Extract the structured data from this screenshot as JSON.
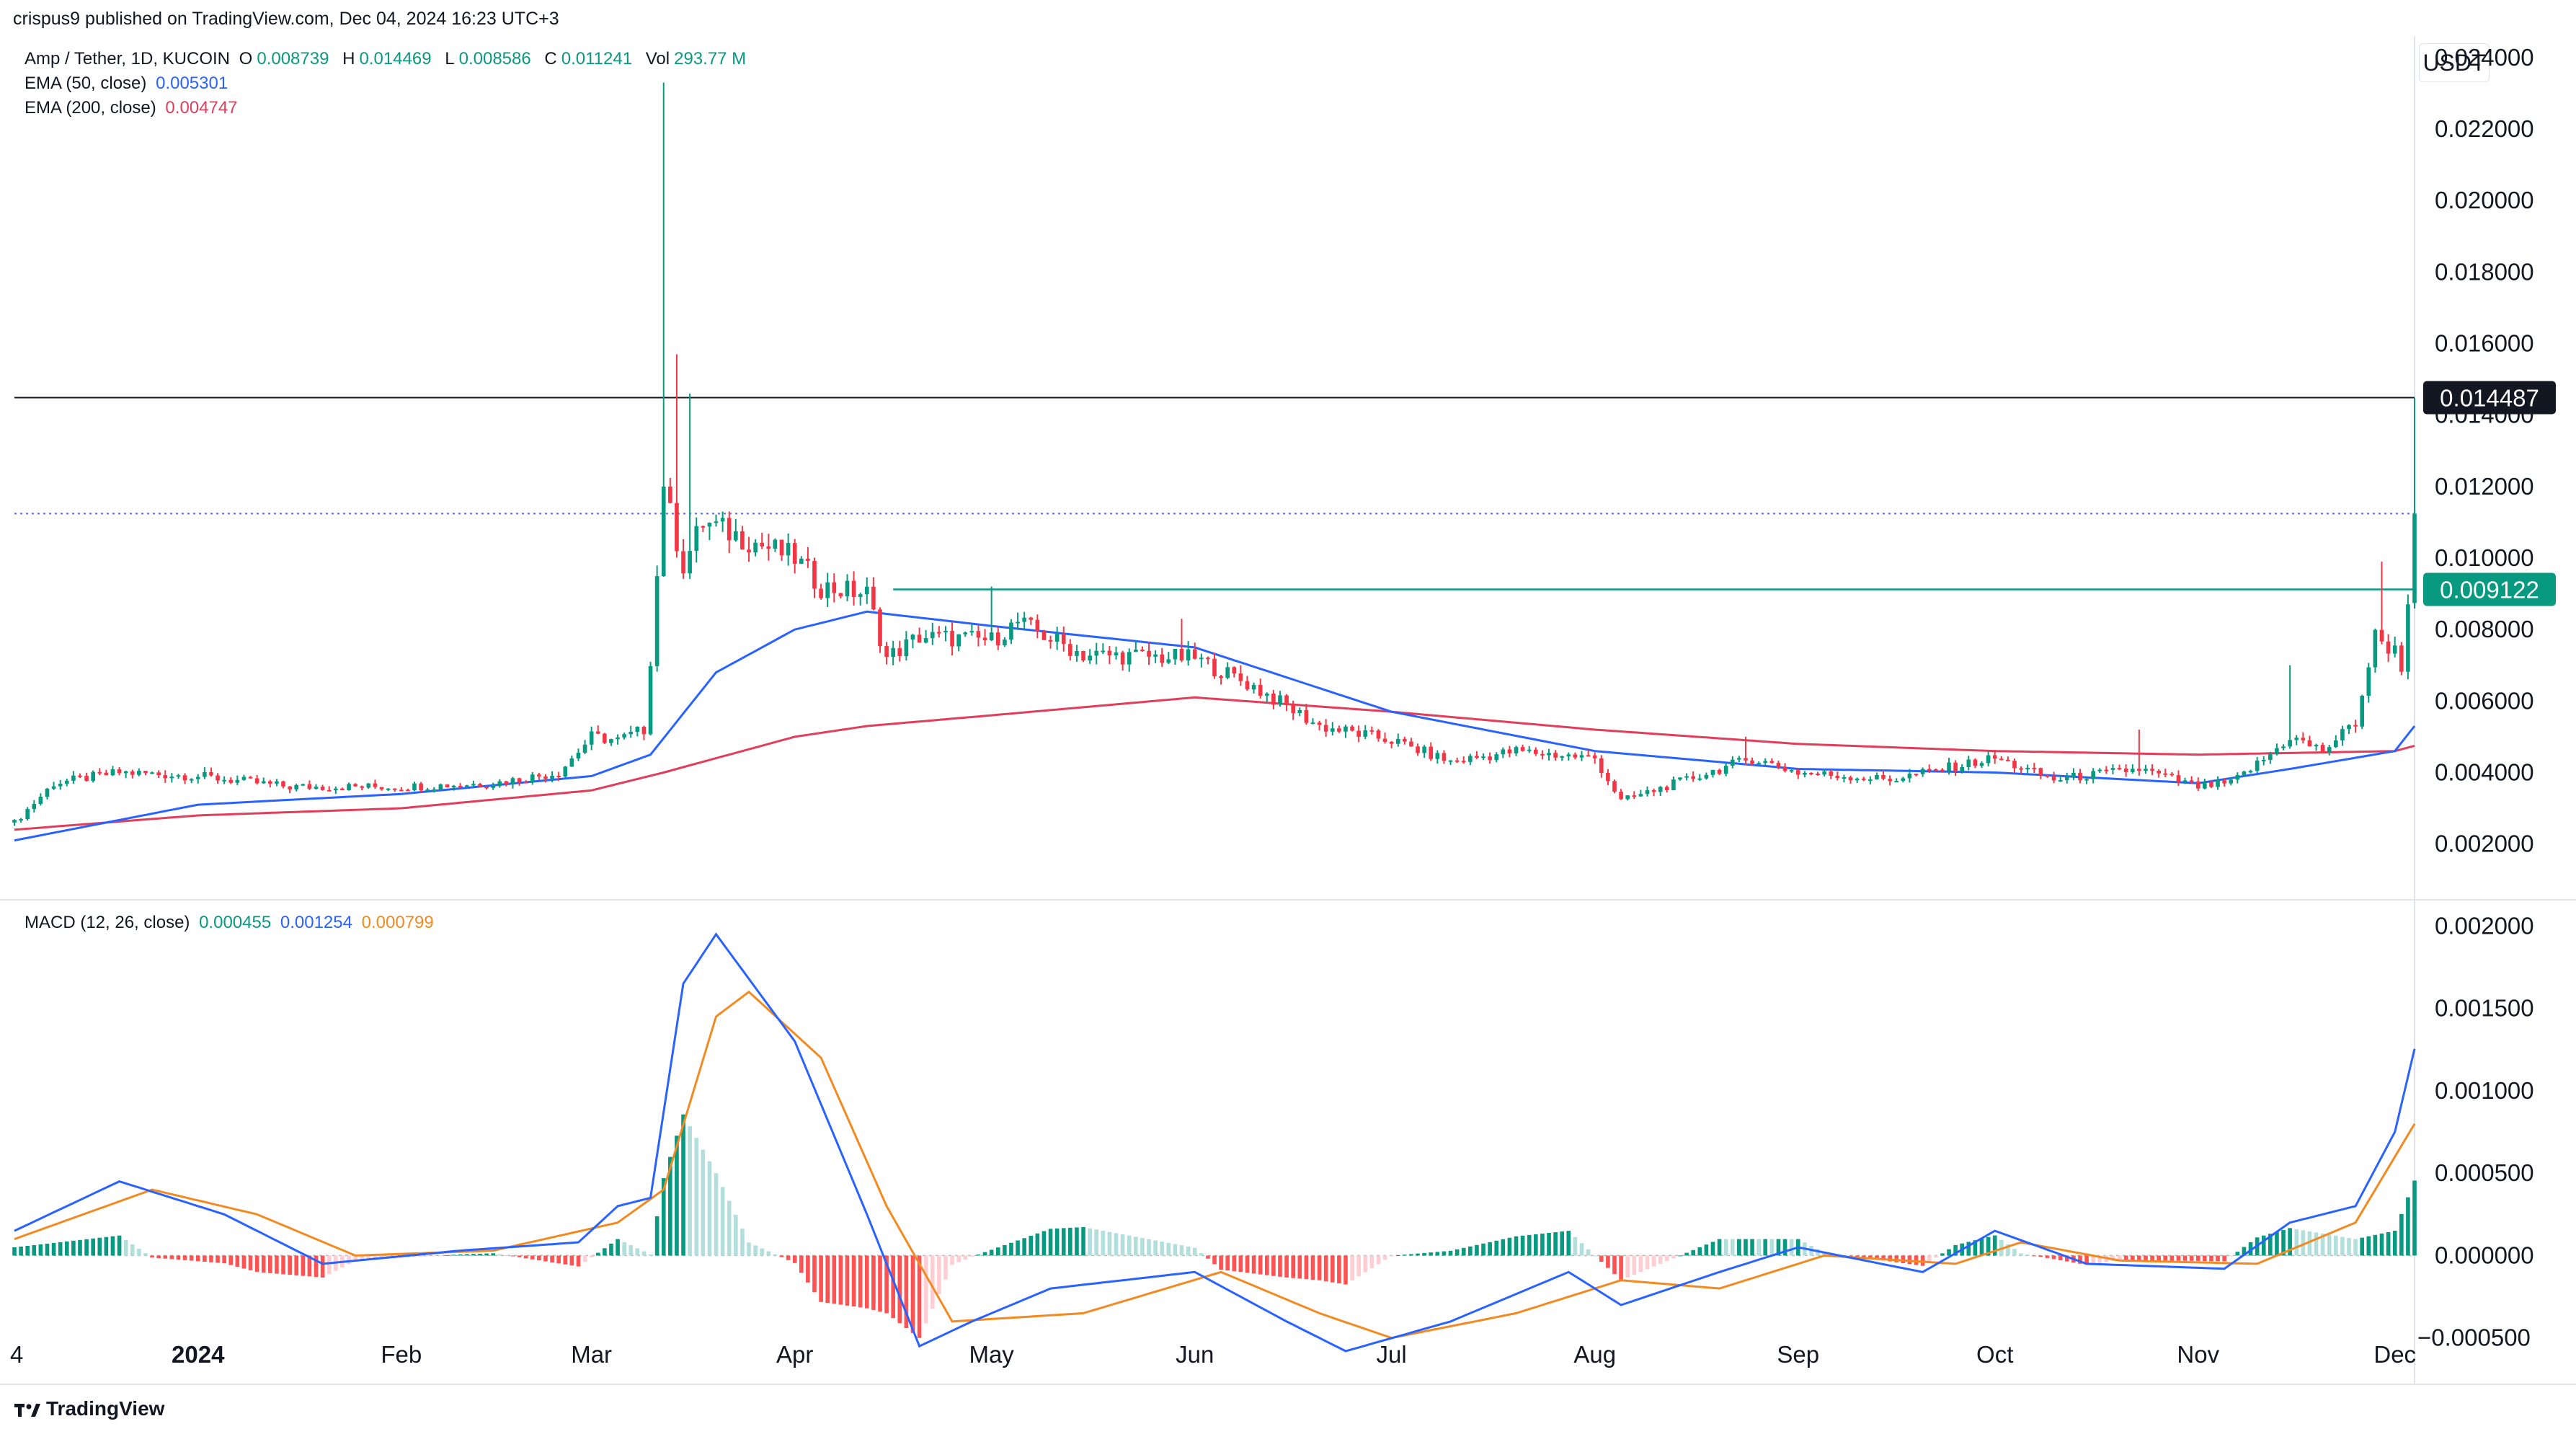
{
  "header": {
    "published": "crispus9 published on TradingView.com, Dec 04, 2024 16:23 UTC+3"
  },
  "price_legend": {
    "symbol": "Amp / Tether, 1D, KUCOIN",
    "o_label": "O",
    "o_value": "0.008739",
    "h_label": "H",
    "h_value": "0.014469",
    "l_label": "L",
    "l_value": "0.008586",
    "c_label": "C",
    "c_value": "0.011241",
    "vol_label": "Vol",
    "vol_value": "293.77 M"
  },
  "ema50_legend": {
    "label": "EMA (50, close)",
    "value": "0.005301"
  },
  "ema200_legend": {
    "label": "EMA (200, close)",
    "value": "0.004747"
  },
  "macd_legend": {
    "label": "MACD (12, 26, close)",
    "hist": "0.000455",
    "macd": "0.001254",
    "signal": "0.000799"
  },
  "currency": "USDT",
  "footer": {
    "brand": "TradingView"
  },
  "colors": {
    "up": "#089981",
    "down": "#f23645",
    "ema50": "#2962ff",
    "ema200": "#e03e5b",
    "macd": "#2962ff",
    "signal": "#f28a22",
    "grid": "#f0f3fa",
    "hline": "#131722",
    "support": "#089981",
    "last_price": "#5b6bd6"
  },
  "chart_data": [
    {
      "type": "candlestick",
      "title": "Amp / Tether, 1D, KUCOIN",
      "ylim": [
        0.0005,
        0.0245
      ],
      "y_ticks": [
        "0.024000",
        "0.022000",
        "0.020000",
        "0.018000",
        "0.016000",
        "0.014000",
        "0.012000",
        "0.010000",
        "0.008000",
        "0.006000",
        "0.004000",
        "0.002000"
      ],
      "x_ticks": [
        "4",
        "2024",
        "Feb",
        "Mar",
        "Apr",
        "May",
        "Jun",
        "Jul",
        "Aug",
        "Sep",
        "Oct",
        "Nov",
        "Dec"
      ],
      "x_tick_dates": [
        "2023-12-04",
        "2024-01-01",
        "2024-02-01",
        "2024-03-01",
        "2024-04-01",
        "2024-05-01",
        "2024-06-01",
        "2024-07-01",
        "2024-08-01",
        "2024-09-01",
        "2024-10-01",
        "2024-11-01",
        "2024-12-01"
      ],
      "date_range": [
        "2023-12-04",
        "2024-12-04"
      ],
      "close_anchors": [
        [
          "2023-12-04",
          0.0026
        ],
        [
          "2023-12-10",
          0.0037
        ],
        [
          "2023-12-20",
          0.004
        ],
        [
          "2024-01-01",
          0.0039
        ],
        [
          "2024-01-15",
          0.0036
        ],
        [
          "2024-02-01",
          0.0036
        ],
        [
          "2024-02-15",
          0.0037
        ],
        [
          "2024-02-25",
          0.004
        ],
        [
          "2024-03-01",
          0.005
        ],
        [
          "2024-03-05",
          0.0049
        ],
        [
          "2024-03-09",
          0.0052
        ],
        [
          "2024-03-10",
          0.0072
        ],
        [
          "2024-03-11",
          0.0095
        ],
        [
          "2024-03-12",
          0.0122
        ],
        [
          "2024-03-13",
          0.0112
        ],
        [
          "2024-03-15",
          0.0098
        ],
        [
          "2024-03-18",
          0.011
        ],
        [
          "2024-03-25",
          0.0105
        ],
        [
          "2024-04-01",
          0.01
        ],
        [
          "2024-04-05",
          0.0092
        ],
        [
          "2024-04-12",
          0.009
        ],
        [
          "2024-04-15",
          0.0072
        ],
        [
          "2024-04-20",
          0.0078
        ],
        [
          "2024-05-01",
          0.0077
        ],
        [
          "2024-05-05",
          0.0082
        ],
        [
          "2024-05-15",
          0.0073
        ],
        [
          "2024-06-01",
          0.0072
        ],
        [
          "2024-06-10",
          0.0064
        ],
        [
          "2024-06-20",
          0.0053
        ],
        [
          "2024-07-01",
          0.0049
        ],
        [
          "2024-07-10",
          0.0043
        ],
        [
          "2024-07-20",
          0.0046
        ],
        [
          "2024-08-01",
          0.0044
        ],
        [
          "2024-08-05",
          0.0032
        ],
        [
          "2024-08-15",
          0.0038
        ],
        [
          "2024-08-25",
          0.0044
        ],
        [
          "2024-09-01",
          0.004
        ],
        [
          "2024-09-15",
          0.0038
        ],
        [
          "2024-10-01",
          0.0044
        ],
        [
          "2024-10-10",
          0.0038
        ],
        [
          "2024-10-23",
          0.0041
        ],
        [
          "2024-11-01",
          0.0036
        ],
        [
          "2024-11-06",
          0.0037
        ],
        [
          "2024-11-12",
          0.0045
        ],
        [
          "2024-11-15",
          0.005
        ],
        [
          "2024-11-20",
          0.0046
        ],
        [
          "2024-11-25",
          0.0054
        ],
        [
          "2024-11-28",
          0.0078
        ],
        [
          "2024-12-01",
          0.0074
        ],
        [
          "2024-12-02",
          0.007
        ],
        [
          "2024-12-03",
          0.0087
        ],
        [
          "2024-12-04",
          0.011241
        ]
      ],
      "wick_spikes": [
        [
          "2024-03-12",
          0.0233
        ],
        [
          "2024-03-14",
          0.0157
        ],
        [
          "2024-03-16",
          0.0146
        ],
        [
          "2024-05-01",
          0.0092
        ],
        [
          "2024-05-30",
          0.0083
        ],
        [
          "2024-08-24",
          0.005
        ],
        [
          "2024-10-23",
          0.0052
        ],
        [
          "2024-11-15",
          0.007
        ],
        [
          "2024-11-29",
          0.0099
        ],
        [
          "2024-12-04",
          0.014469
        ]
      ],
      "ema50": [
        [
          "2023-12-04",
          0.0021
        ],
        [
          "2024-01-01",
          0.0031
        ],
        [
          "2024-02-01",
          0.0034
        ],
        [
          "2024-03-01",
          0.0039
        ],
        [
          "2024-03-10",
          0.0045
        ],
        [
          "2024-03-20",
          0.0068
        ],
        [
          "2024-04-01",
          0.008
        ],
        [
          "2024-04-12",
          0.0085
        ],
        [
          "2024-05-01",
          0.0081
        ],
        [
          "2024-06-01",
          0.0075
        ],
        [
          "2024-07-01",
          0.0057
        ],
        [
          "2024-08-01",
          0.0046
        ],
        [
          "2024-09-01",
          0.0041
        ],
        [
          "2024-10-01",
          0.004
        ],
        [
          "2024-11-01",
          0.0037
        ],
        [
          "2024-11-15",
          0.0041
        ],
        [
          "2024-12-01",
          0.0046
        ],
        [
          "2024-12-04",
          0.005301
        ]
      ],
      "ema200": [
        [
          "2023-12-04",
          0.0024
        ],
        [
          "2024-01-01",
          0.0028
        ],
        [
          "2024-02-01",
          0.003
        ],
        [
          "2024-03-01",
          0.0035
        ],
        [
          "2024-03-12",
          0.004
        ],
        [
          "2024-04-01",
          0.005
        ],
        [
          "2024-04-12",
          0.0053
        ],
        [
          "2024-05-01",
          0.0056
        ],
        [
          "2024-06-01",
          0.0061
        ],
        [
          "2024-07-01",
          0.0057
        ],
        [
          "2024-08-01",
          0.0052
        ],
        [
          "2024-09-01",
          0.0048
        ],
        [
          "2024-10-01",
          0.0046
        ],
        [
          "2024-11-01",
          0.0045
        ],
        [
          "2024-12-01",
          0.0046
        ],
        [
          "2024-12-04",
          0.004747
        ]
      ],
      "horizontal_line": {
        "value": 0.014487,
        "label": "0.014487"
      },
      "support_line": {
        "value": 0.009122,
        "label": "0.009122",
        "from": "2024-04-16"
      },
      "last_price_line": {
        "value": 0.011241
      }
    },
    {
      "type": "line",
      "title": "MACD (12, 26, close)",
      "ylim": [
        -0.00065,
        0.00215
      ],
      "y_ticks": [
        "0.002000",
        "0.001500",
        "0.001000",
        "0.000500",
        "0.000000",
        "−0.000500"
      ],
      "series": [
        {
          "name": "MACD",
          "points": [
            [
              "2023-12-04",
              0.00015
            ],
            [
              "2023-12-20",
              0.00045
            ],
            [
              "2024-01-05",
              0.00025
            ],
            [
              "2024-01-20",
              -5e-05
            ],
            [
              "2024-02-10",
              3e-05
            ],
            [
              "2024-02-28",
              8e-05
            ],
            [
              "2024-03-05",
              0.0003
            ],
            [
              "2024-03-10",
              0.00035
            ],
            [
              "2024-03-15",
              0.00165
            ],
            [
              "2024-03-20",
              0.00195
            ],
            [
              "2024-04-01",
              0.0013
            ],
            [
              "2024-04-12",
              0.00025
            ],
            [
              "2024-04-20",
              -0.00055
            ],
            [
              "2024-04-28",
              -0.0004
            ],
            [
              "2024-05-10",
              -0.0002
            ],
            [
              "2024-06-01",
              -0.0001
            ],
            [
              "2024-06-15",
              -0.0004
            ],
            [
              "2024-06-24",
              -0.00058
            ],
            [
              "2024-07-10",
              -0.0004
            ],
            [
              "2024-07-28",
              -0.0001
            ],
            [
              "2024-08-05",
              -0.0003
            ],
            [
              "2024-08-20",
              -0.0001
            ],
            [
              "2024-09-01",
              5e-05
            ],
            [
              "2024-09-20",
              -0.0001
            ],
            [
              "2024-10-01",
              0.00015
            ],
            [
              "2024-10-15",
              -5e-05
            ],
            [
              "2024-11-05",
              -8e-05
            ],
            [
              "2024-11-15",
              0.0002
            ],
            [
              "2024-11-25",
              0.0003
            ],
            [
              "2024-12-01",
              0.00075
            ],
            [
              "2024-12-04",
              0.001254
            ]
          ]
        },
        {
          "name": "Signal",
          "points": [
            [
              "2023-12-04",
              0.0001
            ],
            [
              "2023-12-25",
              0.0004
            ],
            [
              "2024-01-10",
              0.00025
            ],
            [
              "2024-01-25",
              0.0
            ],
            [
              "2024-02-15",
              3e-05
            ],
            [
              "2024-03-05",
              0.0002
            ],
            [
              "2024-03-12",
              0.0004
            ],
            [
              "2024-03-20",
              0.00145
            ],
            [
              "2024-03-25",
              0.0016
            ],
            [
              "2024-04-05",
              0.0012
            ],
            [
              "2024-04-15",
              0.0003
            ],
            [
              "2024-04-25",
              -0.0004
            ],
            [
              "2024-05-15",
              -0.00035
            ],
            [
              "2024-06-05",
              -0.0001
            ],
            [
              "2024-06-20",
              -0.00035
            ],
            [
              "2024-07-01",
              -0.0005
            ],
            [
              "2024-07-20",
              -0.00035
            ],
            [
              "2024-08-05",
              -0.00015
            ],
            [
              "2024-08-20",
              -0.0002
            ],
            [
              "2024-09-05",
              0.0
            ],
            [
              "2024-09-25",
              -5e-05
            ],
            [
              "2024-10-05",
              8e-05
            ],
            [
              "2024-10-20",
              -3e-05
            ],
            [
              "2024-11-10",
              -5e-05
            ],
            [
              "2024-11-25",
              0.0002
            ],
            [
              "2024-12-04",
              0.000799
            ]
          ]
        }
      ],
      "histogram_value": 0.000455
    }
  ]
}
